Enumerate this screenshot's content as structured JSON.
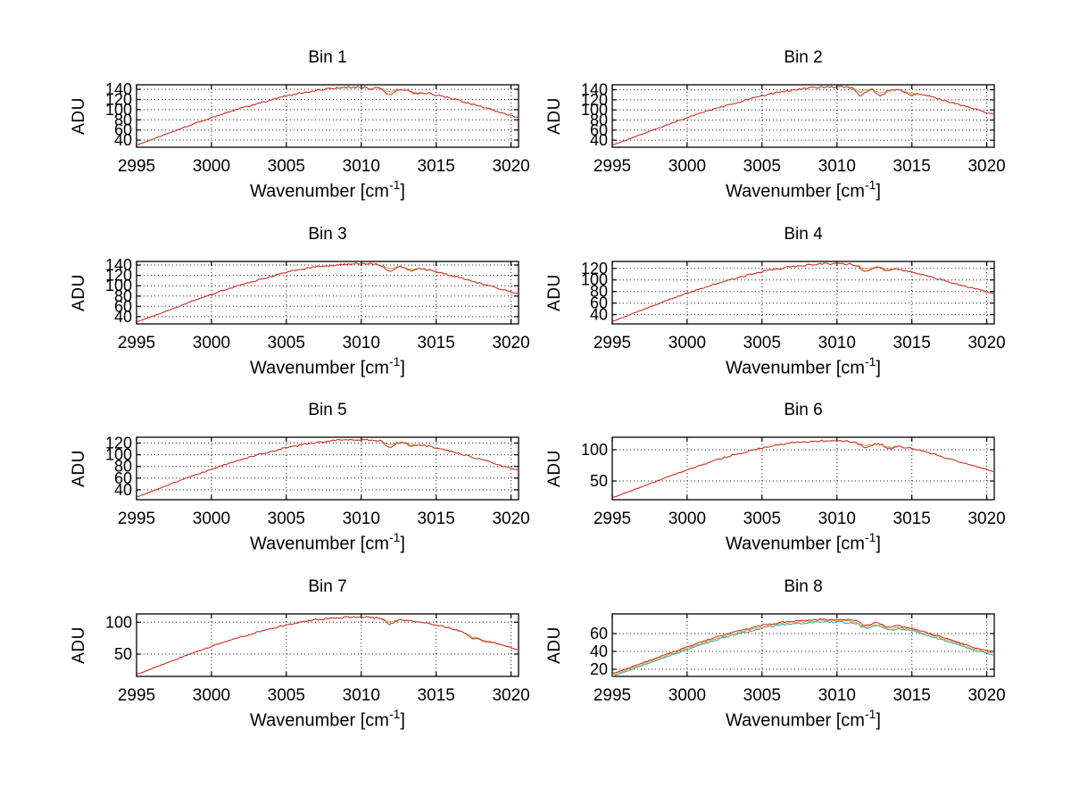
{
  "figure": {
    "background": "#ffffff",
    "axis_color": "#000000",
    "grid_color": "#1a1a1a",
    "text_color": "#000000",
    "line_color": "#c92a2a",
    "line_secondary_color": "#c9a33a",
    "line_tertiary_color": "#2fa79a"
  },
  "chart_data": {
    "type": "line",
    "layout": {
      "rows": 4,
      "cols": 2
    },
    "grid": "dotted",
    "xlabel": {
      "main": "Wavenumber [cm",
      "sup": "-1",
      "close": "]"
    },
    "xlim": [
      2995,
      3020.5
    ],
    "xticks": [
      2995,
      3000,
      3005,
      3010,
      3015,
      3020
    ],
    "x_start": 2995,
    "x_step": 1,
    "plots": [
      {
        "title": "Bin 1",
        "ylabel": "ADU",
        "ylim": [
          26,
          149
        ],
        "yticks": [
          40,
          60,
          80,
          100,
          120,
          140
        ],
        "noise": 2.0,
        "dips": [
          {
            "x": 3011.9,
            "depth": 13,
            "width": 0.3
          },
          {
            "x": 3013.6,
            "depth": 5,
            "width": 0.25
          },
          {
            "x": 3010.6,
            "depth": 4,
            "width": 0.2
          }
        ],
        "values": [
          30,
          41,
          52,
          63,
          74,
          84,
          94,
          103,
          111,
          119,
          127,
          133,
          138,
          141,
          144,
          145,
          144,
          142,
          139,
          135,
          129,
          122,
          114,
          106,
          97,
          88
        ],
        "series": [
          {
            "name": "trace-under",
            "color": "#c9a33a",
            "dip_scale": 0.55
          },
          {
            "name": "trace-main",
            "color": "#c92a2a"
          }
        ]
      },
      {
        "title": "Bin 2",
        "ylabel": "ADU",
        "ylim": [
          26,
          150
        ],
        "yticks": [
          40,
          60,
          80,
          100,
          120,
          140
        ],
        "noise": 2.0,
        "dips": [
          {
            "x": 3011.6,
            "depth": 16,
            "width": 0.3
          },
          {
            "x": 3012.9,
            "depth": 13,
            "width": 0.3
          },
          {
            "x": 3014.9,
            "depth": 7,
            "width": 0.3
          }
        ],
        "values": [
          30,
          41,
          52,
          63,
          74,
          85,
          95,
          104,
          112,
          120,
          128,
          134,
          139,
          143,
          145,
          146,
          145,
          144,
          142,
          140,
          136,
          128,
          120,
          112,
          104,
          95
        ],
        "series": [
          {
            "name": "trace-under",
            "color": "#c9a33a",
            "dip_scale": 0.55
          },
          {
            "name": "trace-main",
            "color": "#c92a2a"
          }
        ]
      },
      {
        "title": "Bin 3",
        "ylabel": "ADU",
        "ylim": [
          26,
          147
        ],
        "yticks": [
          40,
          60,
          80,
          100,
          120,
          140
        ],
        "noise": 1.8,
        "dips": [
          {
            "x": 3011.9,
            "depth": 12,
            "width": 0.3
          },
          {
            "x": 3013.3,
            "depth": 6,
            "width": 0.25
          }
        ],
        "values": [
          30,
          40,
          51,
          62,
          73,
          83,
          93,
          102,
          110,
          118,
          126,
          132,
          137,
          140,
          142,
          143,
          142,
          140,
          137,
          133,
          127,
          120,
          112,
          104,
          96,
          88
        ],
        "series": [
          {
            "name": "trace-under",
            "color": "#c9a33a",
            "dip_scale": 0.55
          },
          {
            "name": "trace-main",
            "color": "#c92a2a"
          }
        ]
      },
      {
        "title": "Bin 4",
        "ylabel": "ADU",
        "ylim": [
          24,
          132
        ],
        "yticks": [
          40,
          60,
          80,
          100,
          120
        ],
        "noise": 1.7,
        "dips": [
          {
            "x": 3011.9,
            "depth": 11,
            "width": 0.3
          },
          {
            "x": 3013.3,
            "depth": 6,
            "width": 0.25
          }
        ],
        "values": [
          28,
          38,
          48,
          58,
          68,
          77,
          86,
          94,
          101,
          108,
          114,
          119,
          123,
          126,
          128,
          128,
          127,
          125,
          122,
          119,
          114,
          107,
          100,
          93,
          86,
          80
        ],
        "series": [
          {
            "name": "trace-under",
            "color": "#c9a33a",
            "dip_scale": 0.55
          },
          {
            "name": "trace-main",
            "color": "#c92a2a"
          }
        ]
      },
      {
        "title": "Bin 5",
        "ylabel": "ADU",
        "ylim": [
          23,
          130
        ],
        "yticks": [
          40,
          60,
          80,
          100,
          120
        ],
        "noise": 1.6,
        "dips": [
          {
            "x": 3011.9,
            "depth": 10,
            "width": 0.3
          },
          {
            "x": 3013.3,
            "depth": 5,
            "width": 0.25
          }
        ],
        "values": [
          27,
          37,
          47,
          57,
          66,
          75,
          84,
          92,
          99,
          106,
          112,
          117,
          121,
          124,
          126,
          126,
          125,
          123,
          121,
          117,
          112,
          106,
          99,
          92,
          84,
          77
        ],
        "series": [
          {
            "name": "trace-under",
            "color": "#c9a33a",
            "dip_scale": 0.55
          },
          {
            "name": "trace-main",
            "color": "#c92a2a"
          }
        ]
      },
      {
        "title": "Bin 6",
        "ylabel": "ADU",
        "ylim": [
          20,
          120
        ],
        "yticks": [
          50,
          100
        ],
        "noise": 1.5,
        "dips": [
          {
            "x": 3011.9,
            "depth": 8,
            "width": 0.3
          },
          {
            "x": 3013.5,
            "depth": 5,
            "width": 0.3
          }
        ],
        "values": [
          23,
          32,
          41,
          50,
          59,
          68,
          76,
          84,
          91,
          97,
          103,
          107,
          111,
          113,
          114,
          114,
          113,
          111,
          109,
          106,
          102,
          96,
          89,
          82,
          75,
          68
        ],
        "series": [
          {
            "name": "trace-under",
            "color": "#c9a33a",
            "dip_scale": 0.55
          },
          {
            "name": "trace-main",
            "color": "#c92a2a"
          }
        ]
      },
      {
        "title": "Bin 7",
        "ylabel": "ADU",
        "ylim": [
          15,
          113
        ],
        "yticks": [
          50,
          100
        ],
        "noise": 1.4,
        "dips": [
          {
            "x": 3011.9,
            "depth": 8,
            "width": 0.3
          },
          {
            "x": 3017.4,
            "depth": 5,
            "width": 0.25
          },
          {
            "x": 3018.3,
            "depth": 4,
            "width": 0.25
          }
        ],
        "values": [
          18,
          27,
          36,
          45,
          54,
          62,
          70,
          77,
          84,
          90,
          96,
          100,
          104,
          106,
          108,
          108,
          107,
          105,
          103,
          100,
          96,
          90,
          83,
          75,
          67,
          60
        ],
        "series": [
          {
            "name": "trace-under",
            "color": "#c9a33a",
            "dip_scale": 0.55
          },
          {
            "name": "trace-main",
            "color": "#c92a2a"
          }
        ]
      },
      {
        "title": "Bin 8",
        "ylabel": "ADU",
        "ylim": [
          12,
          82
        ],
        "yticks": [
          20,
          40,
          60
        ],
        "noise": 1.1,
        "dips": [
          {
            "x": 3011.9,
            "depth": 4,
            "width": 0.3
          },
          {
            "x": 3013.5,
            "depth": 3,
            "width": 0.3
          }
        ],
        "values": [
          15,
          21,
          27,
          33,
          39,
          45,
          51,
          56,
          61,
          65,
          69,
          72,
          74,
          75,
          76,
          76,
          75,
          73,
          71,
          69,
          66,
          61,
          56,
          51,
          45,
          41
        ],
        "series": [
          {
            "name": "trace-teal",
            "color": "#2fa79a",
            "offset": -3
          },
          {
            "name": "trace-yellow",
            "color": "#c9a33a",
            "offset": -1.5
          },
          {
            "name": "trace-main",
            "color": "#c92a2a",
            "offset": 0
          }
        ]
      }
    ]
  }
}
